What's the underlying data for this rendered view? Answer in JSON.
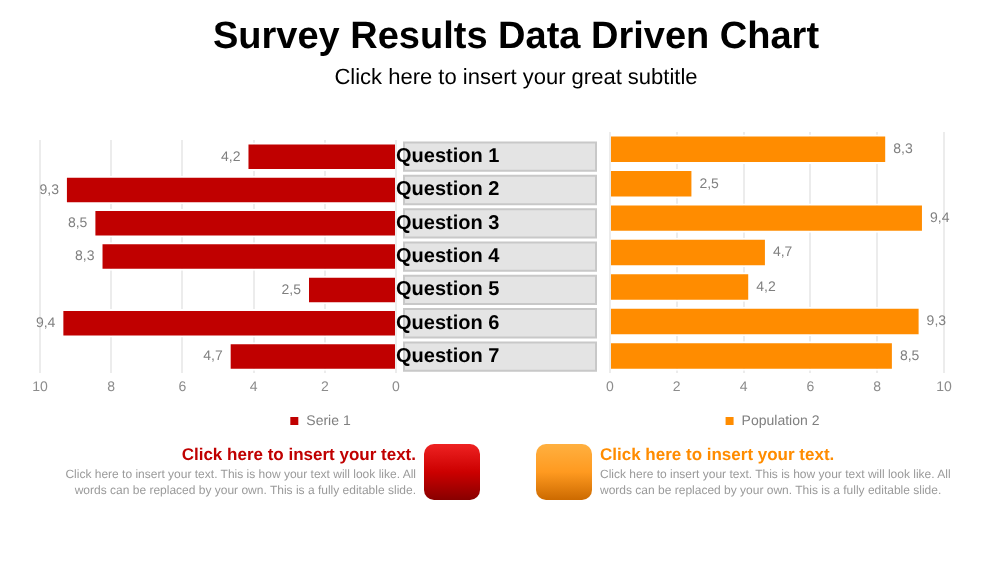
{
  "chart_data": [
    {
      "type": "bar",
      "orientation": "horizontal",
      "title": "Survey Results Data Driven Chart",
      "subtitle": "Click here to insert your great subtitle",
      "categories": [
        "Question 1",
        "Question 2",
        "Question 3",
        "Question 4",
        "Question 5",
        "Question 6",
        "Question 7"
      ],
      "series": [
        {
          "name": "Serie 1",
          "color": "#c00000",
          "values": [
            4.2,
            9.3,
            8.5,
            8.3,
            2.5,
            9.4,
            4.7
          ],
          "value_labels": [
            "4,2",
            "9,3",
            "8,5",
            "8,3",
            "2,5",
            "9,4",
            "4,7"
          ]
        }
      ],
      "xlim": [
        10,
        0
      ],
      "xticks": [
        10,
        8,
        6,
        4,
        2,
        0
      ],
      "grid": "x",
      "legend": "bottom",
      "annotations": [
        "Click here to insert your text.",
        "Click here to insert your text. This is how your text will look like. All words can be replaced by your own. This is a fully editable slide."
      ]
    },
    {
      "type": "bar",
      "orientation": "horizontal",
      "categories": [
        null,
        null,
        null,
        null,
        null,
        null,
        null
      ],
      "series": [
        {
          "name": "Population 2",
          "color": "#ff8c00",
          "values": [
            8.3,
            2.5,
            9.4,
            4.7,
            4.2,
            9.3,
            8.5
          ],
          "value_labels": [
            "8,3",
            "2,5",
            "9,4",
            "4,7",
            "4,2",
            "9,3",
            "8,5"
          ]
        }
      ],
      "xlim": [
        0,
        10
      ],
      "xticks": [
        0,
        2,
        4,
        6,
        8,
        10
      ],
      "grid": "x",
      "legend": "bottom",
      "annotations": [
        "Click here to insert your text.",
        "Click here to insert your text. This is how your text will look like. All words can be replaced by your own. This is a fully editable slide."
      ]
    }
  ]
}
